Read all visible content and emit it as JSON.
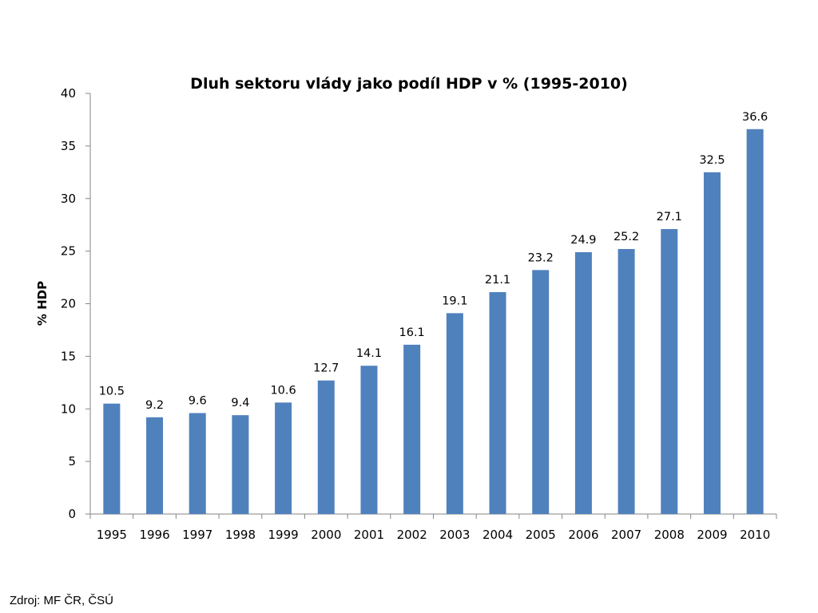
{
  "chart_data": {
    "type": "bar",
    "title": "Dluh sektoru vlády jako podíl HDP v % (1995-2010)",
    "xlabel": "",
    "ylabel": "% HDP",
    "ylim": [
      0,
      40
    ],
    "yticks": [
      0,
      5,
      10,
      15,
      20,
      25,
      30,
      35,
      40
    ],
    "categories": [
      "1995",
      "1996",
      "1997",
      "1998",
      "1999",
      "2000",
      "2001",
      "2002",
      "2003",
      "2004",
      "2005",
      "2006",
      "2007",
      "2008",
      "2009",
      "2010"
    ],
    "values": [
      10.5,
      9.2,
      9.6,
      9.4,
      10.6,
      12.7,
      14.1,
      16.1,
      19.1,
      21.1,
      23.2,
      24.9,
      25.2,
      27.1,
      32.5,
      36.6
    ],
    "data_labels": [
      "10.5",
      "9.2",
      "9.6",
      "9.4",
      "10.6",
      "12.7",
      "14.1",
      "16.1",
      "19.1",
      "21.1",
      "23.2",
      "24.9",
      "25.2",
      "27.1",
      "32.5",
      "36.6"
    ],
    "bar_color": "#4f81bd",
    "grid": false,
    "legend": "none"
  },
  "footer": {
    "source": "Zdroj: MF ČR, ČSÚ"
  }
}
